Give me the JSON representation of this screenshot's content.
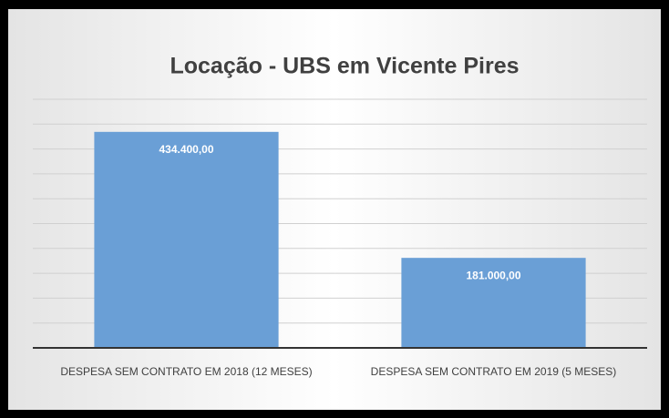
{
  "chart_data": {
    "type": "bar",
    "title": "Locação - UBS em Vicente Pires",
    "categories": [
      "DESPESA SEM CONTRATO EM 2018 (12 MESES)",
      "DESPESA SEM CONTRATO EM 2019 (5 MESES)"
    ],
    "values": [
      434400,
      181000
    ],
    "value_labels": [
      "434.400,00",
      "181.000,00"
    ],
    "color": "#6a9fd6",
    "ylim": [
      0,
      500000
    ],
    "yticks": [
      0,
      50000,
      100000,
      150000,
      200000,
      250000,
      300000,
      350000,
      400000,
      450000,
      500000
    ],
    "grid": true
  }
}
